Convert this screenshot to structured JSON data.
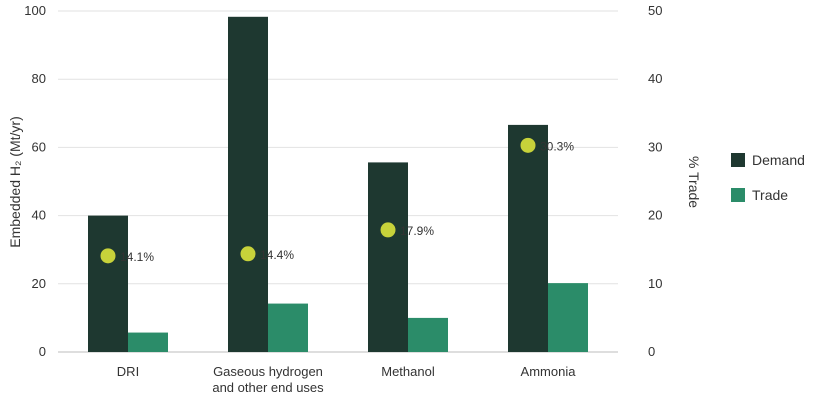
{
  "chart_data": {
    "type": "bar",
    "categories": [
      [
        "DRI"
      ],
      [
        "Gaseous hydrogen",
        "and other end uses"
      ],
      [
        "Methanol"
      ],
      [
        "Ammonia"
      ]
    ],
    "series": [
      {
        "name": "Demand",
        "values": [
          40,
          98.3,
          55.6,
          66.6
        ],
        "color": "#1e3830"
      },
      {
        "name": "Trade",
        "values": [
          5.7,
          14.2,
          10,
          20.2
        ],
        "color": "#2b8c69"
      }
    ],
    "secondary_series": {
      "name": "% Trade",
      "values": [
        14.1,
        14.4,
        17.9,
        30.3
      ],
      "labels": [
        "14.1%",
        "14.4%",
        "17.9%",
        "30.3%"
      ],
      "color": "#c7d23a",
      "marker": "circle"
    },
    "ylabel": "Embedded H₂ (Mt/yr)",
    "ylim": [
      0,
      100
    ],
    "yticks": [
      0,
      20,
      40,
      60,
      80,
      100
    ],
    "y2label": "% Trade",
    "y2lim": [
      0,
      50
    ],
    "y2ticks": [
      0,
      10,
      20,
      30,
      40,
      50
    ],
    "grid": true,
    "legend_position": "right"
  }
}
